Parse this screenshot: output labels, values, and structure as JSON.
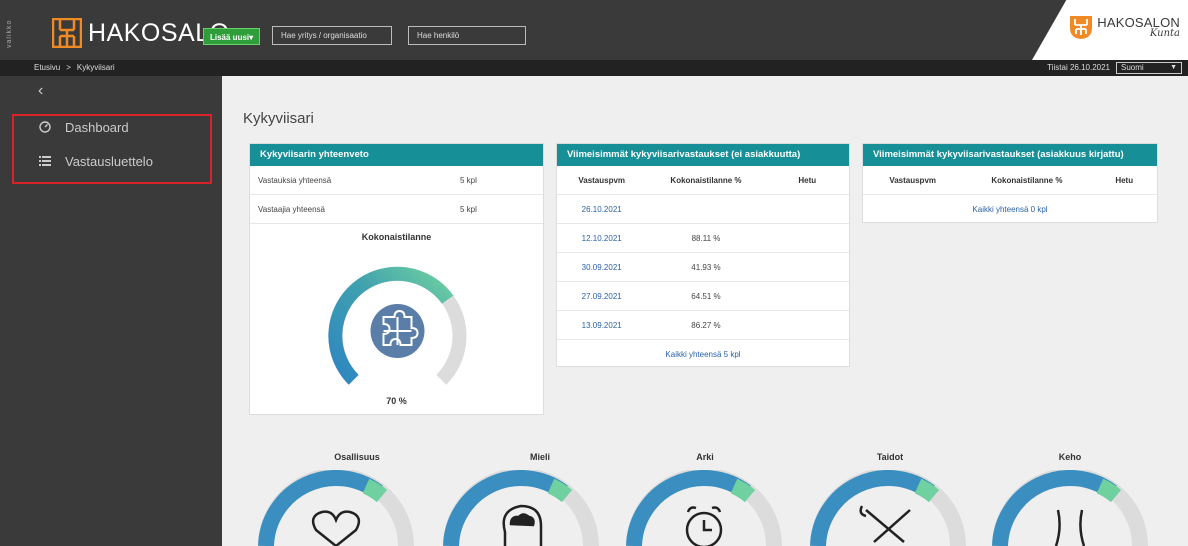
{
  "header": {
    "menu_label": "valikko",
    "logo_text": "HAKOSALO",
    "add_button": "Lisää uusi",
    "add_caret": "▾",
    "search_org_placeholder": "Hae yritys / organisaatio",
    "search_person_placeholder": "Hae henkilö",
    "brand_title": "HAKOSALON",
    "brand_subtitle": "Kunta",
    "colors": {
      "brand_orange": "#f08a24",
      "add_green": "#2e9e3a",
      "teal": "#168f97"
    }
  },
  "breadcrumb": {
    "items": [
      "Etusivu",
      "Kykyviisari"
    ],
    "separator": ">"
  },
  "date_label": "Tiistai 26.10.2021",
  "language": {
    "selected": "Suomi"
  },
  "sidebar": {
    "collapse_icon": "chevron-left-icon",
    "items": [
      {
        "label": "Dashboard",
        "icon": "dashboard-icon"
      },
      {
        "label": "Vastausluettelo",
        "icon": "list-icon"
      }
    ]
  },
  "page_title": "Kykyviisari",
  "summary": {
    "title": "Kykyviisarin yhteenveto",
    "rows": [
      {
        "label": "Vastauksia yhteensä",
        "value": "5 kpl"
      },
      {
        "label": "Vastaajia yhteensä",
        "value": "5 kpl"
      }
    ],
    "gauge_title": "Kokonaistilanne",
    "gauge_percent": "70 %",
    "gauge_value": 0.7
  },
  "latest_anon": {
    "title": "Viimeisimmät kykyviisarivastaukset (ei asiakkuutta)",
    "columns": [
      "Vastauspvm",
      "Kokonaistilanne %",
      "Hetu"
    ],
    "rows": [
      {
        "date": "26.10.2021",
        "score": "",
        "hetu": ""
      },
      {
        "date": "12.10.2021",
        "score": "88.11 %",
        "hetu": ""
      },
      {
        "date": "30.09.2021",
        "score": "41.93 %",
        "hetu": ""
      },
      {
        "date": "27.09.2021",
        "score": "64.51 %",
        "hetu": ""
      },
      {
        "date": "13.09.2021",
        "score": "86.27 %",
        "hetu": ""
      }
    ],
    "total_link": "Kaikki yhteensä 5 kpl"
  },
  "latest_client": {
    "title": "Viimeisimmät kykyviisarivastaukset (asiakkuus kirjattu)",
    "columns": [
      "Vastauspvm",
      "Kokonaistilanne %",
      "Hetu"
    ],
    "total_link": "Kaikki yhteensä 0 kpl"
  },
  "categories": [
    {
      "label": "Osallisuus",
      "icon": "heart-handshake-icon"
    },
    {
      "label": "Mieli",
      "icon": "head-cloud-icon"
    },
    {
      "label": "Arki",
      "icon": "alarm-clock-icon"
    },
    {
      "label": "Taidot",
      "icon": "tools-icon"
    },
    {
      "label": "Keho",
      "icon": "body-icon"
    }
  ]
}
